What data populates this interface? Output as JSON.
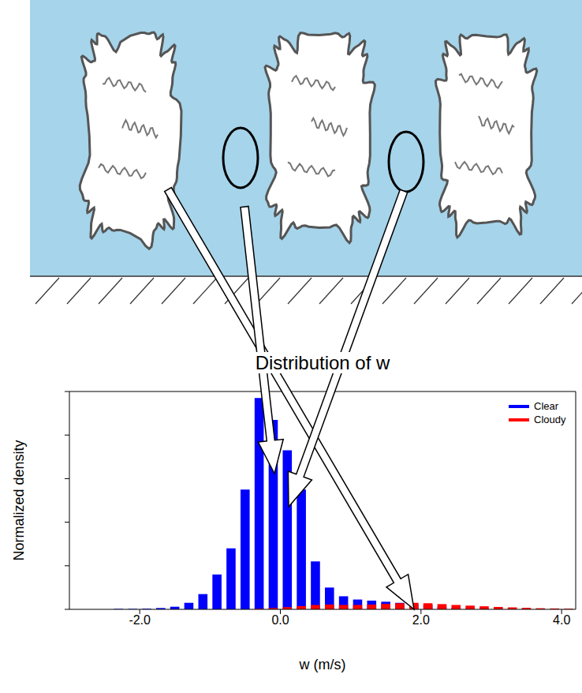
{
  "chart_data": {
    "type": "histogram",
    "title": "Distribution of w",
    "x_label": "w (m/s)",
    "y_label": "Normalized density",
    "bins": [
      -2.4,
      -2.2,
      -2.0,
      -1.8,
      -1.6,
      -1.4,
      -1.2,
      -1.0,
      -0.8,
      -0.6,
      -0.4,
      -0.2,
      0.0,
      0.2,
      0.4,
      0.6,
      0.8,
      1.0,
      1.2,
      1.4,
      1.6,
      1.8,
      2.0,
      2.2,
      2.4,
      2.6,
      2.8,
      3.0,
      3.2,
      3.4,
      3.6,
      3.8,
      4.0,
      4.2
    ],
    "series": [
      {
        "name": "Clear",
        "color": "#0000ff",
        "values": [
          0.002,
          0.002,
          0.003,
          0.006,
          0.012,
          0.03,
          0.07,
          0.16,
          0.28,
          0.55,
          0.97,
          0.87,
          0.73,
          0.55,
          0.22,
          0.1,
          0.06,
          0.045,
          0.04,
          0.035,
          0.03,
          0.025,
          0.02,
          0.012,
          0.008,
          0.005,
          0.003,
          0.002,
          0.001,
          0,
          0,
          0,
          0
        ]
      },
      {
        "name": "Cloudy",
        "color": "#ff0000",
        "values": [
          0,
          0,
          0,
          0,
          0,
          0,
          0,
          0,
          0,
          0,
          0.003,
          0.006,
          0.01,
          0.015,
          0.02,
          0.022,
          0.02,
          0.02,
          0.022,
          0.025,
          0.028,
          0.03,
          0.028,
          0.024,
          0.02,
          0.017,
          0.014,
          0.011,
          0.009,
          0.007,
          0.005,
          0.004,
          0.003
        ]
      }
    ],
    "xlim": [
      -3.0,
      4.2
    ],
    "xticks": [
      {
        "value": -2,
        "label": "-2.0"
      },
      {
        "value": 0,
        "label": "0.0"
      },
      {
        "value": 2,
        "label": "2.0"
      },
      {
        "value": 4,
        "label": "4.0"
      }
    ],
    "ylim": [
      0,
      1
    ],
    "yticks": [
      0,
      0.2,
      0.4,
      0.6,
      0.8,
      1
    ],
    "tick_labels": "x",
    "legend": "upper right",
    "grid": false
  }
}
